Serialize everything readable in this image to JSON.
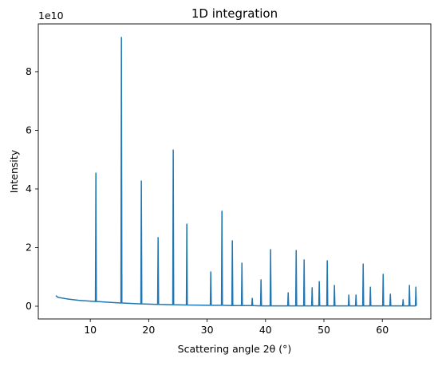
{
  "chart_data": {
    "type": "line",
    "title": "1D integration",
    "x_label": "Scattering angle 2θ (°)",
    "y_label": "Intensity",
    "y_offset_label": "1e10",
    "x": [
      4.1,
      4.5,
      6,
      8,
      10.88,
      10.96,
      11.04,
      15.25,
      15.33,
      15.41,
      18.66,
      18.74,
      18.82,
      21.53,
      21.61,
      21.69,
      24.12,
      24.2,
      24.28,
      26.45,
      26.53,
      26.61,
      30.55,
      30.63,
      30.71,
      32.46,
      32.54,
      32.62,
      34.24,
      34.32,
      34.4,
      35.88,
      35.96,
      36.04,
      37.65,
      37.73,
      37.81,
      39.15,
      39.23,
      39.31,
      40.79,
      40.87,
      40.95,
      43.8,
      43.88,
      43.96,
      45.17,
      45.25,
      45.33,
      46.53,
      46.61,
      46.69,
      47.9,
      47.98,
      48.06,
      49.12,
      49.2,
      49.28,
      50.49,
      50.57,
      50.65,
      51.72,
      51.8,
      51.88,
      54.18,
      54.26,
      54.34,
      55.41,
      55.49,
      55.57,
      56.64,
      56.72,
      56.8,
      57.87,
      57.95,
      58.03,
      60.06,
      60.14,
      60.22,
      61.29,
      61.37,
      61.45,
      63.47,
      63.55,
      63.63,
      64.56,
      64.64,
      64.72,
      65.66,
      65.74,
      65.82
    ],
    "series": [
      {
        "name": "Intensity",
        "color": "#1f77b4",
        "values": [
          0.36,
          0.3,
          0.25,
          0.2,
          0.16,
          4.54,
          0.16,
          0.11,
          9.17,
          0.11,
          0.08,
          4.27,
          0.08,
          0.06,
          2.34,
          0.06,
          0.05,
          5.33,
          0.05,
          0.04,
          2.8,
          0.04,
          0.03,
          1.17,
          0.03,
          0.03,
          3.24,
          0.03,
          0.02,
          2.23,
          0.02,
          0.02,
          1.47,
          0.02,
          0.02,
          0.27,
          0.02,
          0.01,
          0.9,
          0.01,
          0.01,
          1.93,
          0.01,
          0.01,
          0.46,
          0.01,
          0.01,
          1.9,
          0.01,
          0.01,
          1.58,
          0.01,
          0.01,
          0.63,
          0.01,
          0.01,
          0.84,
          0.01,
          0.01,
          1.55,
          0.01,
          0.01,
          0.71,
          0.01,
          0.01,
          0.38,
          0.01,
          0.01,
          0.38,
          0.01,
          0.01,
          1.44,
          0.01,
          0.01,
          0.65,
          0.01,
          0.01,
          1.09,
          0.01,
          0.01,
          0.41,
          0.01,
          0.01,
          0.22,
          0.01,
          0.01,
          0.71,
          0.01,
          0.01,
          0.65,
          0.01
        ]
      }
    ],
    "xlim": [
      1.1,
      68.3
    ],
    "xticks": [
      10,
      20,
      30,
      40,
      50,
      60
    ],
    "ylim": [
      -0.435,
      9.63
    ],
    "yticks": [
      0,
      2,
      4,
      6,
      8
    ],
    "grid": false
  }
}
